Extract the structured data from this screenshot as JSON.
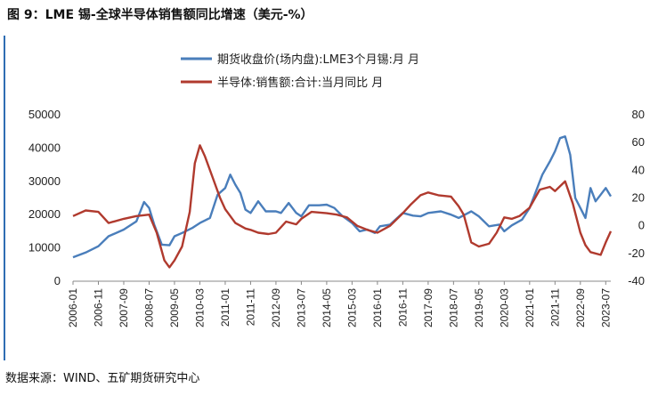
{
  "title": "图 9：LME 锡-全球半导体销售额同比增速（美元-%）",
  "source": "数据来源：WIND、五矿期货研究中心",
  "chart_data": {
    "type": "line",
    "legend_position": "top-center",
    "grid": false,
    "x_tick_labels": [
      "2006-01",
      "2006-11",
      "2007-09",
      "2008-07",
      "2009-05",
      "2010-03",
      "2011-01",
      "2011-11",
      "2012-09",
      "2013-07",
      "2014-05",
      "2015-03",
      "2016-01",
      "2016-11",
      "2017-09",
      "2018-07",
      "2019-05",
      "2020-03",
      "2021-01",
      "2021-11",
      "2022-09",
      "2023-07"
    ],
    "y_left": {
      "ticks": [
        0,
        10000,
        20000,
        30000,
        40000,
        50000
      ],
      "ylim": [
        0,
        50000
      ]
    },
    "y_right": {
      "ticks": [
        -40,
        -20,
        0,
        20,
        40,
        60,
        80
      ],
      "ylim": [
        -40,
        80
      ]
    },
    "x_range": [
      "2006-01",
      "2023-09"
    ],
    "series": [
      {
        "name": "期货收盘价(场内盘):LME3个月锡:月 月",
        "axis": "left",
        "color": "#4a7ebb",
        "points": [
          [
            "2006-01",
            7200
          ],
          [
            "2006-06",
            8600
          ],
          [
            "2006-11",
            10500
          ],
          [
            "2007-03",
            13500
          ],
          [
            "2007-09",
            15500
          ],
          [
            "2008-02",
            18000
          ],
          [
            "2008-05",
            23800
          ],
          [
            "2008-07",
            22000
          ],
          [
            "2008-09",
            17000
          ],
          [
            "2008-12",
            11000
          ],
          [
            "2009-03",
            10800
          ],
          [
            "2009-05",
            13500
          ],
          [
            "2009-08",
            14500
          ],
          [
            "2009-12",
            16000
          ],
          [
            "2010-03",
            17500
          ],
          [
            "2010-07",
            19000
          ],
          [
            "2010-10",
            26000
          ],
          [
            "2011-01",
            28000
          ],
          [
            "2011-03",
            32000
          ],
          [
            "2011-05",
            29000
          ],
          [
            "2011-07",
            26500
          ],
          [
            "2011-09",
            21500
          ],
          [
            "2011-11",
            20500
          ],
          [
            "2012-02",
            24000
          ],
          [
            "2012-05",
            21000
          ],
          [
            "2012-09",
            21000
          ],
          [
            "2012-11",
            20500
          ],
          [
            "2013-02",
            23500
          ],
          [
            "2013-05",
            20500
          ],
          [
            "2013-07",
            19500
          ],
          [
            "2013-10",
            22800
          ],
          [
            "2014-02",
            22800
          ],
          [
            "2014-05",
            23000
          ],
          [
            "2014-08",
            22000
          ],
          [
            "2014-11",
            19700
          ],
          [
            "2015-03",
            17500
          ],
          [
            "2015-06",
            15000
          ],
          [
            "2015-09",
            15500
          ],
          [
            "2015-12",
            14500
          ],
          [
            "2016-02",
            16500
          ],
          [
            "2016-06",
            17000
          ],
          [
            "2016-11",
            20500
          ],
          [
            "2017-03",
            19700
          ],
          [
            "2017-06",
            19500
          ],
          [
            "2017-09",
            20500
          ],
          [
            "2018-02",
            21000
          ],
          [
            "2018-06",
            20000
          ],
          [
            "2018-09",
            19000
          ],
          [
            "2019-02",
            21000
          ],
          [
            "2019-05",
            19500
          ],
          [
            "2019-09",
            16500
          ],
          [
            "2020-01",
            17000
          ],
          [
            "2020-03",
            15000
          ],
          [
            "2020-06",
            16800
          ],
          [
            "2020-10",
            18500
          ],
          [
            "2021-01",
            22000
          ],
          [
            "2021-03",
            26000
          ],
          [
            "2021-06",
            32000
          ],
          [
            "2021-09",
            36000
          ],
          [
            "2021-11",
            39000
          ],
          [
            "2022-01",
            43000
          ],
          [
            "2022-03",
            43500
          ],
          [
            "2022-05",
            38000
          ],
          [
            "2022-07",
            25000
          ],
          [
            "2022-09",
            22000
          ],
          [
            "2022-11",
            19000
          ],
          [
            "2023-01",
            28000
          ],
          [
            "2023-03",
            24000
          ],
          [
            "2023-05",
            26000
          ],
          [
            "2023-07",
            28000
          ],
          [
            "2023-09",
            25500
          ]
        ]
      },
      {
        "name": "半导体:销售额:合计:当月同比 月",
        "axis": "right",
        "color": "#b03a2e",
        "points": [
          [
            "2006-01",
            7
          ],
          [
            "2006-06",
            11
          ],
          [
            "2006-11",
            10
          ],
          [
            "2007-03",
            2
          ],
          [
            "2007-09",
            5
          ],
          [
            "2008-02",
            7
          ],
          [
            "2008-07",
            8
          ],
          [
            "2008-10",
            -5
          ],
          [
            "2009-01",
            -25
          ],
          [
            "2009-03",
            -30
          ],
          [
            "2009-05",
            -25
          ],
          [
            "2009-08",
            -15
          ],
          [
            "2009-11",
            10
          ],
          [
            "2010-01",
            45
          ],
          [
            "2010-03",
            58
          ],
          [
            "2010-05",
            50
          ],
          [
            "2010-08",
            35
          ],
          [
            "2010-11",
            20
          ],
          [
            "2011-01",
            12
          ],
          [
            "2011-05",
            2
          ],
          [
            "2011-09",
            -2
          ],
          [
            "2011-11",
            -3
          ],
          [
            "2012-02",
            -5
          ],
          [
            "2012-06",
            -6
          ],
          [
            "2012-09",
            -5
          ],
          [
            "2013-01",
            3
          ],
          [
            "2013-05",
            1
          ],
          [
            "2013-07",
            5
          ],
          [
            "2013-11",
            10
          ],
          [
            "2014-05",
            9
          ],
          [
            "2014-09",
            8
          ],
          [
            "2015-01",
            6
          ],
          [
            "2015-05",
            0
          ],
          [
            "2015-09",
            -3
          ],
          [
            "2016-01",
            -5
          ],
          [
            "2016-06",
            0
          ],
          [
            "2016-11",
            9
          ],
          [
            "2017-02",
            15
          ],
          [
            "2017-06",
            22
          ],
          [
            "2017-09",
            24
          ],
          [
            "2018-01",
            22
          ],
          [
            "2018-06",
            21
          ],
          [
            "2018-09",
            14
          ],
          [
            "2018-11",
            8
          ],
          [
            "2019-02",
            -12
          ],
          [
            "2019-05",
            -15
          ],
          [
            "2019-09",
            -13
          ],
          [
            "2019-12",
            -5
          ],
          [
            "2020-03",
            6
          ],
          [
            "2020-06",
            5
          ],
          [
            "2020-09",
            7
          ],
          [
            "2021-01",
            13
          ],
          [
            "2021-05",
            26
          ],
          [
            "2021-09",
            28
          ],
          [
            "2021-11",
            25
          ],
          [
            "2022-03",
            32
          ],
          [
            "2022-06",
            16
          ],
          [
            "2022-09",
            -5
          ],
          [
            "2022-11",
            -14
          ],
          [
            "2023-01",
            -19
          ],
          [
            "2023-05",
            -21
          ],
          [
            "2023-07",
            -12
          ],
          [
            "2023-09",
            -4
          ]
        ]
      }
    ]
  }
}
